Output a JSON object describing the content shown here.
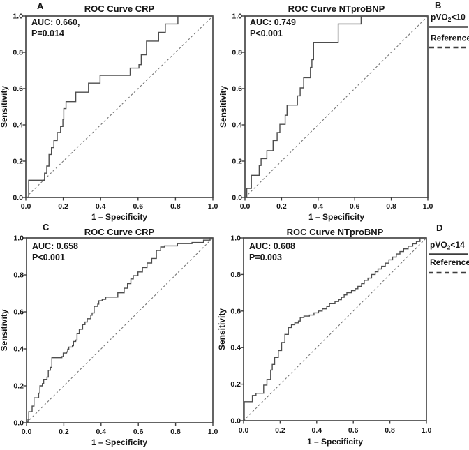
{
  "figure": {
    "description": "Four-panel ROC curve figure",
    "background": "#ffffff"
  },
  "colors": {
    "text": "#161616",
    "axis": "#3d3d3d",
    "curve": "#4d4d4d",
    "reference": "#777777",
    "legend_line": "#3d3d3d"
  },
  "chart_data": [
    {
      "type": "line",
      "panel_label": "A",
      "title": "ROC Curve CRP",
      "annotation": [
        "AUC: 0.660,",
        "P=0.014"
      ],
      "auc": 0.66,
      "p_value": "P=0.014",
      "xlabel": "1 – Specificity",
      "ylabel": "Sensitivity",
      "xlim": [
        0.0,
        1.0
      ],
      "ylim": [
        0.0,
        1.0
      ],
      "xticks": [
        "0.0",
        "0.2",
        "0.4",
        "0.6",
        "0.8",
        "1.0"
      ],
      "yticks": [
        "0.0",
        "0.2",
        "0.4",
        "0.6",
        "0.8",
        "1.0"
      ],
      "grid": false,
      "legend": null,
      "series": [
        {
          "name": "ROC curve",
          "style": "step",
          "points": [
            [
              0.015,
              0.095
            ],
            [
              0.1,
              0.134
            ],
            [
              0.112,
              0.173
            ],
            [
              0.124,
              0.237
            ],
            [
              0.137,
              0.275
            ],
            [
              0.15,
              0.314
            ],
            [
              0.168,
              0.358
            ],
            [
              0.186,
              0.391
            ],
            [
              0.198,
              0.43
            ],
            [
              0.203,
              0.49
            ],
            [
              0.215,
              0.528
            ],
            [
              0.267,
              0.58
            ],
            [
              0.335,
              0.63
            ],
            [
              0.397,
              0.673
            ],
            [
              0.558,
              0.713
            ],
            [
              0.605,
              0.732
            ],
            [
              0.617,
              0.786
            ],
            [
              0.645,
              0.862
            ],
            [
              0.71,
              0.91
            ],
            [
              0.746,
              0.956
            ],
            [
              0.813,
              1.0
            ],
            [
              1.0,
              1.0
            ]
          ]
        },
        {
          "name": "Reference",
          "style": "dashed-diagonal",
          "points": [
            [
              0,
              0
            ],
            [
              1,
              1
            ]
          ]
        }
      ]
    },
    {
      "type": "line",
      "panel_label": "B",
      "title": "ROC Curve NTproBNP",
      "annotation": [
        "AUC: 0.749",
        "P<0.001"
      ],
      "auc": 0.749,
      "p_value": "P<0.001",
      "xlabel": "1 – Specificity",
      "ylabel": "Sensitivity",
      "xlim": [
        0.0,
        1.0
      ],
      "ylim": [
        0.0,
        1.0
      ],
      "xticks": [
        "0.0",
        "0.2",
        "0.4",
        "0.6",
        "0.8",
        "1.0"
      ],
      "yticks": [
        "0.0",
        "0.2",
        "0.4",
        "0.6",
        "0.8",
        "1.0"
      ],
      "grid": false,
      "legend": {
        "position": "outside-top-right",
        "items": [
          {
            "label": "pVO₂<10",
            "line_style": "solid"
          },
          {
            "label": "Reference",
            "line_style": "dashed"
          }
        ]
      },
      "series": [
        {
          "name": "ROC curve",
          "style": "step",
          "points": [
            [
              0.01,
              0.05
            ],
            [
              0.035,
              0.122
            ],
            [
              0.078,
              0.176
            ],
            [
              0.088,
              0.214
            ],
            [
              0.12,
              0.258
            ],
            [
              0.154,
              0.314
            ],
            [
              0.176,
              0.358
            ],
            [
              0.191,
              0.403
            ],
            [
              0.22,
              0.453
            ],
            [
              0.23,
              0.509
            ],
            [
              0.287,
              0.56
            ],
            [
              0.302,
              0.604
            ],
            [
              0.321,
              0.66
            ],
            [
              0.358,
              0.717
            ],
            [
              0.366,
              0.76
            ],
            [
              0.375,
              0.855
            ],
            [
              0.51,
              0.956
            ],
            [
              0.635,
              1.0
            ],
            [
              1.0,
              1.0
            ]
          ]
        },
        {
          "name": "Reference",
          "style": "dashed-diagonal",
          "points": [
            [
              0,
              0
            ],
            [
              1,
              1
            ]
          ]
        }
      ]
    },
    {
      "type": "line",
      "panel_label": "C",
      "title": "ROC Curve CRP",
      "annotation": [
        "AUC: 0.658",
        "P<0.001"
      ],
      "auc": 0.658,
      "p_value": "P<0.001",
      "xlabel": "1 – Specificity",
      "ylabel": "Sensitivity",
      "xlim": [
        0.0,
        1.0
      ],
      "ylim": [
        0.0,
        1.0
      ],
      "xticks": [
        "0.0",
        "0.2",
        "0.4",
        "0.6",
        "0.8",
        "1.0"
      ],
      "yticks": [
        "0.0",
        "0.2",
        "0.4",
        "0.6",
        "0.8",
        "1.0"
      ],
      "grid": false,
      "legend": null,
      "series": [
        {
          "name": "ROC curve",
          "style": "step",
          "points": [
            [
              0.008,
              0.02
            ],
            [
              0.012,
              0.06
            ],
            [
              0.03,
              0.09
            ],
            [
              0.04,
              0.135
            ],
            [
              0.065,
              0.16
            ],
            [
              0.072,
              0.2
            ],
            [
              0.085,
              0.212
            ],
            [
              0.092,
              0.235
            ],
            [
              0.11,
              0.247
            ],
            [
              0.117,
              0.284
            ],
            [
              0.128,
              0.3
            ],
            [
              0.136,
              0.352
            ],
            [
              0.19,
              0.358
            ],
            [
              0.197,
              0.377
            ],
            [
              0.215,
              0.383
            ],
            [
              0.221,
              0.398
            ],
            [
              0.227,
              0.41
            ],
            [
              0.246,
              0.417
            ],
            [
              0.252,
              0.44
            ],
            [
              0.264,
              0.447
            ],
            [
              0.271,
              0.482
            ],
            [
              0.283,
              0.506
            ],
            [
              0.301,
              0.531
            ],
            [
              0.314,
              0.545
            ],
            [
              0.326,
              0.563
            ],
            [
              0.345,
              0.582
            ],
            [
              0.352,
              0.594
            ],
            [
              0.363,
              0.63
            ],
            [
              0.382,
              0.642
            ],
            [
              0.388,
              0.66
            ],
            [
              0.406,
              0.668
            ],
            [
              0.425,
              0.68
            ],
            [
              0.49,
              0.703
            ],
            [
              0.524,
              0.728
            ],
            [
              0.542,
              0.753
            ],
            [
              0.56,
              0.778
            ],
            [
              0.573,
              0.796
            ],
            [
              0.598,
              0.816
            ],
            [
              0.622,
              0.84
            ],
            [
              0.647,
              0.864
            ],
            [
              0.672,
              0.889
            ],
            [
              0.697,
              0.932
            ],
            [
              0.72,
              0.951
            ],
            [
              0.74,
              0.957
            ],
            [
              0.81,
              0.969
            ],
            [
              0.888,
              0.975
            ],
            [
              0.95,
              0.988
            ],
            [
              0.985,
              1.0
            ],
            [
              1.0,
              1.0
            ]
          ]
        },
        {
          "name": "Reference",
          "style": "dashed-diagonal",
          "points": [
            [
              0,
              0
            ],
            [
              1,
              1
            ]
          ]
        }
      ]
    },
    {
      "type": "line",
      "panel_label": "D",
      "title": "ROC Curve NTproBNP",
      "annotation": [
        "AUC: 0.608",
        "P=0.003"
      ],
      "auc": 0.608,
      "p_value": "P=0.003",
      "xlabel": "1 – Specificity",
      "ylabel": "Sensitivity",
      "xlim": [
        0.0,
        1.0
      ],
      "ylim": [
        0.0,
        1.0
      ],
      "xticks": [
        "0.0",
        "0.2",
        "0.4",
        "0.6",
        "0.8",
        "1.0"
      ],
      "yticks": [
        "0.0",
        "0.2",
        "0.4",
        "0.6",
        "0.8",
        "1.0"
      ],
      "grid": false,
      "legend": {
        "position": "outside-top-right",
        "items": [
          {
            "label": "pVO₂<14",
            "line_style": "solid"
          },
          {
            "label": "Reference",
            "line_style": "dashed"
          }
        ]
      },
      "series": [
        {
          "name": "ROC curve",
          "style": "step",
          "points": [
            [
              0.004,
              0.104
            ],
            [
              0.048,
              0.138
            ],
            [
              0.068,
              0.15
            ],
            [
              0.11,
              0.195
            ],
            [
              0.128,
              0.226
            ],
            [
              0.148,
              0.277
            ],
            [
              0.157,
              0.308
            ],
            [
              0.17,
              0.346
            ],
            [
              0.19,
              0.384
            ],
            [
              0.208,
              0.428
            ],
            [
              0.226,
              0.472
            ],
            [
              0.245,
              0.51
            ],
            [
              0.262,
              0.525
            ],
            [
              0.28,
              0.535
            ],
            [
              0.3,
              0.545
            ],
            [
              0.31,
              0.565
            ],
            [
              0.33,
              0.572
            ],
            [
              0.36,
              0.578
            ],
            [
              0.385,
              0.59
            ],
            [
              0.41,
              0.6
            ],
            [
              0.43,
              0.612
            ],
            [
              0.455,
              0.625
            ],
            [
              0.47,
              0.64
            ],
            [
              0.5,
              0.652
            ],
            [
              0.52,
              0.662
            ],
            [
              0.535,
              0.675
            ],
            [
              0.55,
              0.688
            ],
            [
              0.565,
              0.7
            ],
            [
              0.59,
              0.712
            ],
            [
              0.61,
              0.722
            ],
            [
              0.625,
              0.735
            ],
            [
              0.645,
              0.75
            ],
            [
              0.66,
              0.768
            ],
            [
              0.68,
              0.78
            ],
            [
              0.7,
              0.8
            ],
            [
              0.72,
              0.815
            ],
            [
              0.735,
              0.83
            ],
            [
              0.755,
              0.845
            ],
            [
              0.775,
              0.862
            ],
            [
              0.795,
              0.88
            ],
            [
              0.815,
              0.895
            ],
            [
              0.835,
              0.912
            ],
            [
              0.855,
              0.925
            ],
            [
              0.875,
              0.94
            ],
            [
              0.9,
              0.955
            ],
            [
              0.925,
              0.968
            ],
            [
              0.945,
              0.98
            ],
            [
              0.965,
              1.0
            ],
            [
              1.0,
              1.0
            ]
          ]
        },
        {
          "name": "Reference",
          "style": "dashed-diagonal",
          "points": [
            [
              0,
              0
            ],
            [
              1,
              1
            ]
          ]
        }
      ]
    }
  ]
}
